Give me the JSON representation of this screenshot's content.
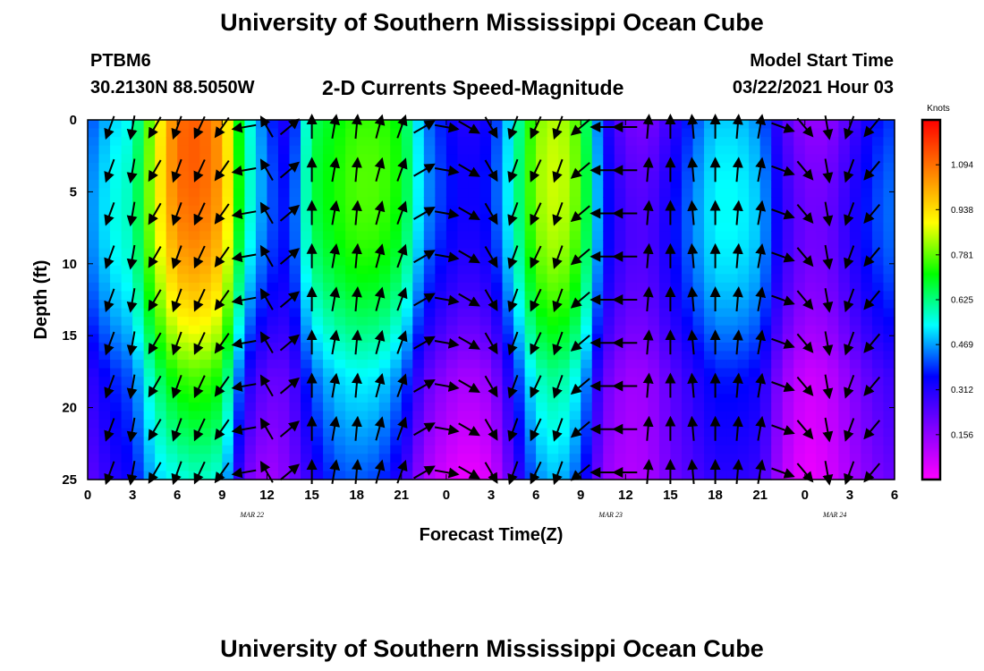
{
  "title_top": "University of Southern Mississippi Ocean Cube",
  "title_bottom": "University of Southern Mississippi Ocean Cube",
  "station": {
    "name": "PTBM6",
    "coords": "30.2130N 88.5050W"
  },
  "model": {
    "label": "Model Start Time",
    "time": "03/22/2021 Hour 03"
  },
  "chart_data": {
    "type": "heatmap",
    "title": "2-D Currents Speed-Magnitude",
    "xlabel": "Forecast Time(Z)",
    "ylabel": "Depth (ft)",
    "x_ticks": [
      "0",
      "3",
      "6",
      "9",
      "12",
      "15",
      "18",
      "21",
      "0",
      "3",
      "6",
      "9",
      "12",
      "15",
      "18",
      "21",
      "0",
      "3",
      "6"
    ],
    "x_tick_hours": [
      0,
      3,
      6,
      9,
      12,
      15,
      18,
      21,
      24,
      27,
      30,
      33,
      36,
      39,
      42,
      45,
      48,
      51,
      54
    ],
    "date_labels": [
      {
        "label": "MAR 22",
        "hour": 11
      },
      {
        "label": "MAR 23",
        "hour": 35
      },
      {
        "label": "MAR 24",
        "hour": 50
      }
    ],
    "y_ticks": [
      "0",
      "5",
      "10",
      "15",
      "20",
      "25"
    ],
    "y_tick_values": [
      0,
      5,
      10,
      15,
      20,
      25
    ],
    "xlim": [
      0,
      54
    ],
    "ylim": [
      0,
      25
    ],
    "colorbar": {
      "label": "Knots",
      "ticks": [
        "1.094",
        "0.938",
        "0.781",
        "0.625",
        "0.469",
        "0.312",
        "0.156"
      ],
      "tick_values": [
        1.094,
        0.938,
        0.781,
        0.625,
        0.469,
        0.312,
        0.156
      ],
      "range": [
        0,
        1.25
      ],
      "colors": [
        "#ff00ff",
        "#8000ff",
        "#0000ff",
        "#00ffff",
        "#00ff00",
        "#ffff00",
        "#ff8000",
        "#ff0000"
      ]
    },
    "speed_profile_by_hour": [
      {
        "hour": 0,
        "surface": 0.4,
        "bottom": 0.22
      },
      {
        "hour": 1.5,
        "surface": 0.5,
        "bottom": 0.3
      },
      {
        "hour": 3,
        "surface": 0.55,
        "bottom": 0.35
      },
      {
        "hour": 4.5,
        "surface": 0.85,
        "bottom": 0.5
      },
      {
        "hour": 6,
        "surface": 1.1,
        "bottom": 0.55
      },
      {
        "hour": 7.5,
        "surface": 1.12,
        "bottom": 0.58
      },
      {
        "hour": 9,
        "surface": 1.02,
        "bottom": 0.55
      },
      {
        "hour": 10.5,
        "surface": 0.6,
        "bottom": 0.2
      },
      {
        "hour": 12,
        "surface": 0.4,
        "bottom": 0.12
      },
      {
        "hour": 13.5,
        "surface": 0.3,
        "bottom": 0.18
      },
      {
        "hour": 15,
        "surface": 0.65,
        "bottom": 0.3
      },
      {
        "hour": 16.5,
        "surface": 0.7,
        "bottom": 0.4
      },
      {
        "hour": 18,
        "surface": 0.75,
        "bottom": 0.42
      },
      {
        "hour": 19.5,
        "surface": 0.75,
        "bottom": 0.4
      },
      {
        "hour": 21,
        "surface": 0.7,
        "bottom": 0.3
      },
      {
        "hour": 22.5,
        "surface": 0.45,
        "bottom": 0.12
      },
      {
        "hour": 24,
        "surface": 0.35,
        "bottom": 0.05
      },
      {
        "hour": 25.5,
        "surface": 0.3,
        "bottom": 0.02
      },
      {
        "hour": 27,
        "surface": 0.35,
        "bottom": 0.05
      },
      {
        "hour": 28.5,
        "surface": 0.55,
        "bottom": 0.25
      },
      {
        "hour": 30,
        "surface": 0.8,
        "bottom": 0.45
      },
      {
        "hour": 31.5,
        "surface": 0.85,
        "bottom": 0.5
      },
      {
        "hour": 33,
        "surface": 0.75,
        "bottom": 0.4
      },
      {
        "hour": 34.5,
        "surface": 0.35,
        "bottom": 0.15
      },
      {
        "hour": 36,
        "surface": 0.2,
        "bottom": 0.1
      },
      {
        "hour": 37.5,
        "surface": 0.18,
        "bottom": 0.12
      },
      {
        "hour": 39,
        "surface": 0.28,
        "bottom": 0.2
      },
      {
        "hour": 40.5,
        "surface": 0.4,
        "bottom": 0.25
      },
      {
        "hour": 42,
        "surface": 0.5,
        "bottom": 0.3
      },
      {
        "hour": 43.5,
        "surface": 0.5,
        "bottom": 0.3
      },
      {
        "hour": 45,
        "surface": 0.45,
        "bottom": 0.28
      },
      {
        "hour": 46.5,
        "surface": 0.25,
        "bottom": 0.1
      },
      {
        "hour": 48,
        "surface": 0.15,
        "bottom": 0.02
      },
      {
        "hour": 49.5,
        "surface": 0.15,
        "bottom": 0.05
      },
      {
        "hour": 51,
        "surface": 0.25,
        "bottom": 0.12
      },
      {
        "hour": 52.5,
        "surface": 0.35,
        "bottom": 0.18
      },
      {
        "hour": 54,
        "surface": 0.4,
        "bottom": 0.22
      }
    ],
    "direction_by_hour": [
      {
        "hour": 1.5,
        "dir_deg": 200
      },
      {
        "hour": 3,
        "dir_deg": 190
      },
      {
        "hour": 4.5,
        "dir_deg": 210
      },
      {
        "hour": 6,
        "dir_deg": 200
      },
      {
        "hour": 7.5,
        "dir_deg": 205
      },
      {
        "hour": 9,
        "dir_deg": 215
      },
      {
        "hour": 10.5,
        "dir_deg": 260
      },
      {
        "hour": 12,
        "dir_deg": 330
      },
      {
        "hour": 13.5,
        "dir_deg": 50
      },
      {
        "hour": 15,
        "dir_deg": 360
      },
      {
        "hour": 16.5,
        "dir_deg": 10
      },
      {
        "hour": 18,
        "dir_deg": 5
      },
      {
        "hour": 19.5,
        "dir_deg": 15
      },
      {
        "hour": 21,
        "dir_deg": 20
      },
      {
        "hour": 22.5,
        "dir_deg": 60
      },
      {
        "hour": 24,
        "dir_deg": 100
      },
      {
        "hour": 25.5,
        "dir_deg": 120
      },
      {
        "hour": 27,
        "dir_deg": 150
      },
      {
        "hour": 28.5,
        "dir_deg": 200
      },
      {
        "hour": 30,
        "dir_deg": 205
      },
      {
        "hour": 31.5,
        "dir_deg": 200
      },
      {
        "hour": 33,
        "dir_deg": 230
      },
      {
        "hour": 34.5,
        "dir_deg": 270
      },
      {
        "hour": 36,
        "dir_deg": 270
      },
      {
        "hour": 37.5,
        "dir_deg": 5
      },
      {
        "hour": 39,
        "dir_deg": 0
      },
      {
        "hour": 40.5,
        "dir_deg": 355
      },
      {
        "hour": 42,
        "dir_deg": 0
      },
      {
        "hour": 43.5,
        "dir_deg": 5
      },
      {
        "hour": 45,
        "dir_deg": 10
      },
      {
        "hour": 46.5,
        "dir_deg": 110
      },
      {
        "hour": 48,
        "dir_deg": 140
      },
      {
        "hour": 49.5,
        "dir_deg": 170
      },
      {
        "hour": 51,
        "dir_deg": 200
      },
      {
        "hour": 52.5,
        "dir_deg": 220
      }
    ],
    "arrow_depths": [
      0.5,
      3.5,
      6.5,
      9.5,
      12.5,
      15.5,
      18.5,
      21.5,
      24.5
    ]
  }
}
